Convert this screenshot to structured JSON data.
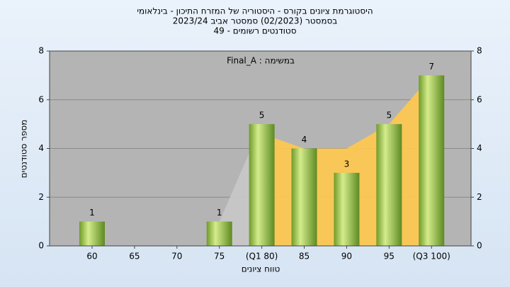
{
  "chart_data": {
    "type": "bar",
    "title": "היסטוגרמת ציונים בקורס - היסטוריה של המזרח התיכון - בינלאומי",
    "subtitle": "בסמסטר  (02/2023)  סמסטר אביב 2023/24",
    "subtitle2": "סטודנטים רשומים - 49",
    "annotation": "במשימה : Final_A",
    "x_label": "טווח ציונים",
    "y_label": "מספר סטודנטים",
    "categories": [
      "60",
      "65",
      "70",
      "75",
      "(Q1 80)",
      "85",
      "90",
      "95",
      "(Q3 100)"
    ],
    "series": [
      {
        "color": "#8fbc3f",
        "values": [
          1,
          0,
          0,
          1,
          5,
          4,
          3,
          5,
          7
        ],
        "value_labels": [
          "1",
          null,
          null,
          "1",
          "5",
          "4",
          "3",
          "5",
          "7"
        ]
      },
      {
        "type": "area",
        "color": "#c8c8c8",
        "values": [
          null,
          null,
          null,
          1,
          5,
          null,
          null,
          null,
          null
        ]
      },
      {
        "type": "area",
        "color": "#ffc94d",
        "values": [
          null,
          null,
          null,
          null,
          4.6,
          4,
          4,
          5,
          7
        ]
      }
    ],
    "ylim": [
      0,
      8
    ],
    "yticks": [
      0,
      2,
      4,
      6,
      8
    ],
    "grid": true
  }
}
